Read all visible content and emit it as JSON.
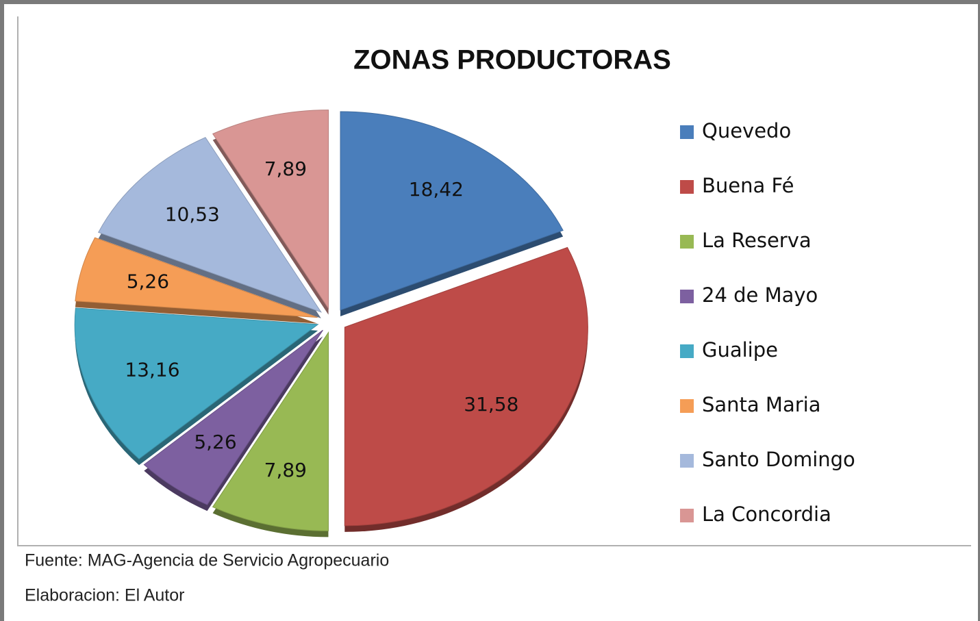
{
  "chart_data": {
    "type": "pie",
    "title": "ZONAS PRODUCTORAS",
    "categories": [
      "Quevedo",
      "Buena Fé",
      "La Reserva",
      "24 de Mayo",
      "Gualipe",
      "Santa Maria",
      "Santo Domingo",
      "La Concordia"
    ],
    "values": [
      18.42,
      31.58,
      7.89,
      5.26,
      13.16,
      5.26,
      10.53,
      7.89
    ],
    "value_labels": [
      "18,42",
      "31,58",
      "7,89",
      "5,26",
      "13,16",
      "5,26",
      "10,53",
      "7,89"
    ],
    "colors": [
      "#4a7ebb",
      "#be4b48",
      "#98b954",
      "#7d60a0",
      "#46aac5",
      "#f59d56",
      "#a5b9dc",
      "#d99694"
    ],
    "legend": "right",
    "footnotes": [
      "Fuente: MAG-Agencia de Servicio Agropecuario",
      "Elaboracion: El Autor"
    ]
  }
}
